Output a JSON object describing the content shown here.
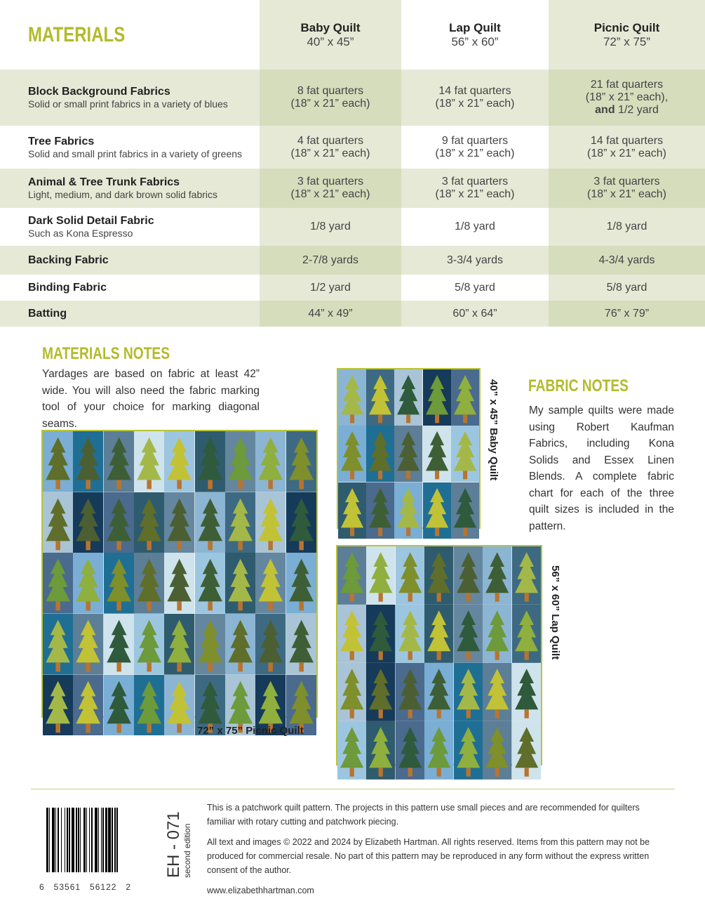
{
  "materials": {
    "title": "MATERIALS",
    "columns": [
      {
        "name": "Baby Quilt",
        "size": "40” x 45”"
      },
      {
        "name": "Lap Quilt",
        "size": "56” x 60”"
      },
      {
        "name": "Picnic Quilt",
        "size": "72” x 75”"
      }
    ],
    "rows": [
      {
        "label": "Block Background Fabrics",
        "desc": "Solid or small print fabrics in a variety of blues",
        "baby": [
          "8 fat quarters",
          "(18” x 21” each)"
        ],
        "lap": [
          "14 fat quarters",
          "(18” x 21” each)"
        ],
        "picnic": [
          "21 fat quarters",
          "(18” x 21” each),",
          "and",
          "1/2 yard"
        ]
      },
      {
        "label": "Tree Fabrics",
        "desc": "Solid and small print fabrics in a variety of greens",
        "baby": [
          "4 fat quarters",
          "(18” x 21” each)"
        ],
        "lap": [
          "9 fat quarters",
          "(18” x 21” each)"
        ],
        "picnic": [
          "14 fat quarters",
          "(18” x 21” each)"
        ]
      },
      {
        "label": "Animal & Tree Trunk Fabrics",
        "desc": "Light, medium, and dark brown solid fabrics",
        "baby": [
          "3 fat quarters",
          "(18” x 21” each)"
        ],
        "lap": [
          "3 fat quarters",
          "(18” x 21” each)"
        ],
        "picnic": [
          "3 fat quarters",
          "(18” x 21” each)"
        ]
      },
      {
        "label": "Dark Solid Detail Fabric",
        "desc": "Such as Kona Espresso",
        "baby": [
          "1/8 yard"
        ],
        "lap": [
          "1/8 yard"
        ],
        "picnic": [
          "1/8 yard"
        ]
      },
      {
        "label": "Backing Fabric",
        "desc": "",
        "baby": [
          "2-7/8 yards"
        ],
        "lap": [
          "3-3/4 yards"
        ],
        "picnic": [
          "4-3/4 yards"
        ]
      },
      {
        "label": "Binding Fabric",
        "desc": "",
        "baby": [
          "1/2 yard"
        ],
        "lap": [
          "5/8 yard"
        ],
        "picnic": [
          "5/8 yard"
        ]
      },
      {
        "label": "Batting",
        "desc": "",
        "baby": [
          "44” x 49”"
        ],
        "lap": [
          "60” x 64”"
        ],
        "picnic": [
          "76” x 79”"
        ]
      }
    ]
  },
  "materials_notes": {
    "title": "MATERIALS NOTES",
    "text": "Yardages are based on fabric at least 42” wide. You will also need the fabric marking tool of your choice for marking diagonal seams."
  },
  "fabric_notes": {
    "title": "FABRIC NOTES",
    "text": "My sample quilts were made using Robert Kaufman Fabrics, including Kona Solids and Essex Linen Blends. A complete fabric chart for each of the three quilt sizes is included in the pattern."
  },
  "quilts": {
    "picnic_caption": "72” x 75” Picnic Quilt",
    "baby_caption": "40” x 45” Baby Quilt",
    "lap_caption": "56” x 60” Lap Quilt"
  },
  "footer": {
    "barcode_digits": "6   53561   56122   2",
    "code": "EH - 071",
    "edition": "second edition",
    "p1": "This is a patchwork quilt pattern. The projects in this pattern use small pieces and are recommended for quilters familiar with rotary cutting and patchwork piecing.",
    "p2": "All text and images © 2022 and 2024 by Elizabeth Hartman. All rights reserved. Items from this pattern may not be produced for commercial resale. No part of this pattern may be reproduced in any form without the express written consent of the author.",
    "url": "www.elizabethhartman.com"
  },
  "colors": {
    "accent": "#b2bb2a",
    "row_light": "#e6e9d6",
    "row_dark": "#d6ddbd"
  }
}
